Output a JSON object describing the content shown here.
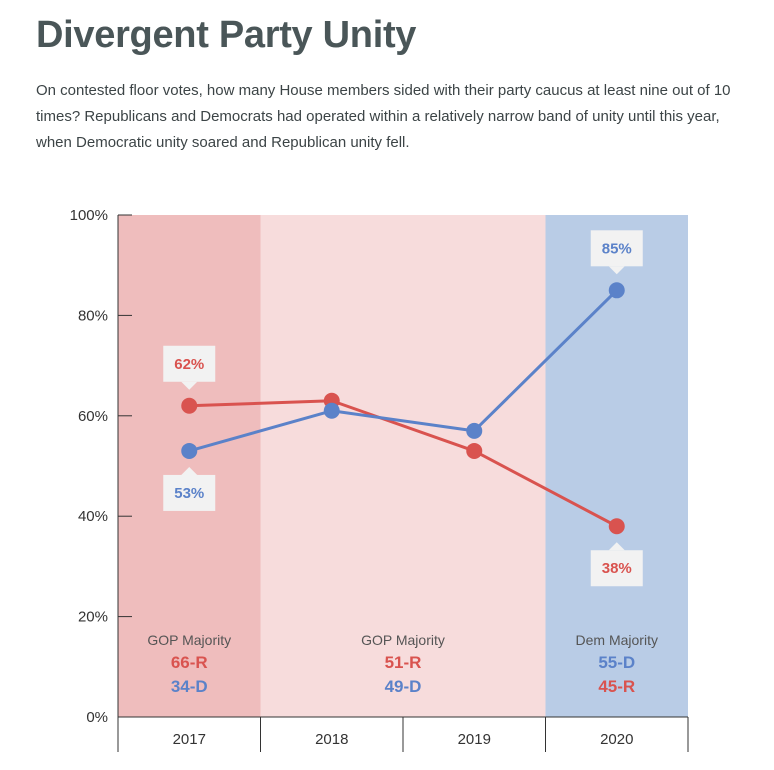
{
  "title": "Divergent Party Unity",
  "subtitle": "On contested floor votes, how many House members sided with their party caucus at least nine out of 10 times? Republicans and Democrats had operated within a relatively narrow band of unity until this year, when Democratic unity soared and Republican unity fell.",
  "colors": {
    "republican": "#d9534f",
    "democrat": "#5b82c9",
    "gop_majority_dark": "#efbdbd",
    "gop_majority_light": "#f7dcdc",
    "dem_majority": "#b9cce6"
  },
  "chart_data": {
    "type": "line",
    "categories": [
      "2017",
      "2018",
      "2019",
      "2020"
    ],
    "ylim": [
      0,
      100
    ],
    "yticks": [
      "0%",
      "20%",
      "40%",
      "60%",
      "80%",
      "100%"
    ],
    "ytick_values": [
      0,
      20,
      40,
      60,
      80,
      100
    ],
    "series": [
      {
        "key": "republican",
        "values": [
          62,
          63,
          53,
          38
        ]
      },
      {
        "key": "democrat",
        "values": [
          53,
          61,
          57,
          85
        ]
      }
    ],
    "callouts": [
      {
        "series": "republican",
        "index": 0,
        "text": "62%",
        "side": "above"
      },
      {
        "series": "democrat",
        "index": 0,
        "text": "53%",
        "side": "below"
      },
      {
        "series": "democrat",
        "index": 3,
        "text": "85%",
        "side": "above"
      },
      {
        "series": "republican",
        "index": 3,
        "text": "38%",
        "side": "below"
      }
    ],
    "bands": [
      {
        "from": -0.5,
        "to": 0.5,
        "color": "gop_majority_dark"
      },
      {
        "from": 0.5,
        "to": 2.5,
        "color": "gop_majority_light"
      },
      {
        "from": 2.5,
        "to": 3.5,
        "color": "dem_majority"
      }
    ],
    "annotations": [
      {
        "center": 0,
        "header": "GOP Majority",
        "lines": [
          {
            "text": "66-R",
            "party": "republican"
          },
          {
            "text": "34-D",
            "party": "democrat"
          }
        ]
      },
      {
        "center": 1.5,
        "header": "GOP Majority",
        "lines": [
          {
            "text": "51-R",
            "party": "republican"
          },
          {
            "text": "49-D",
            "party": "democrat"
          }
        ]
      },
      {
        "center": 3,
        "header": "Dem Majority",
        "lines": [
          {
            "text": "55-D",
            "party": "democrat"
          },
          {
            "text": "45-R",
            "party": "republican"
          }
        ]
      }
    ]
  }
}
